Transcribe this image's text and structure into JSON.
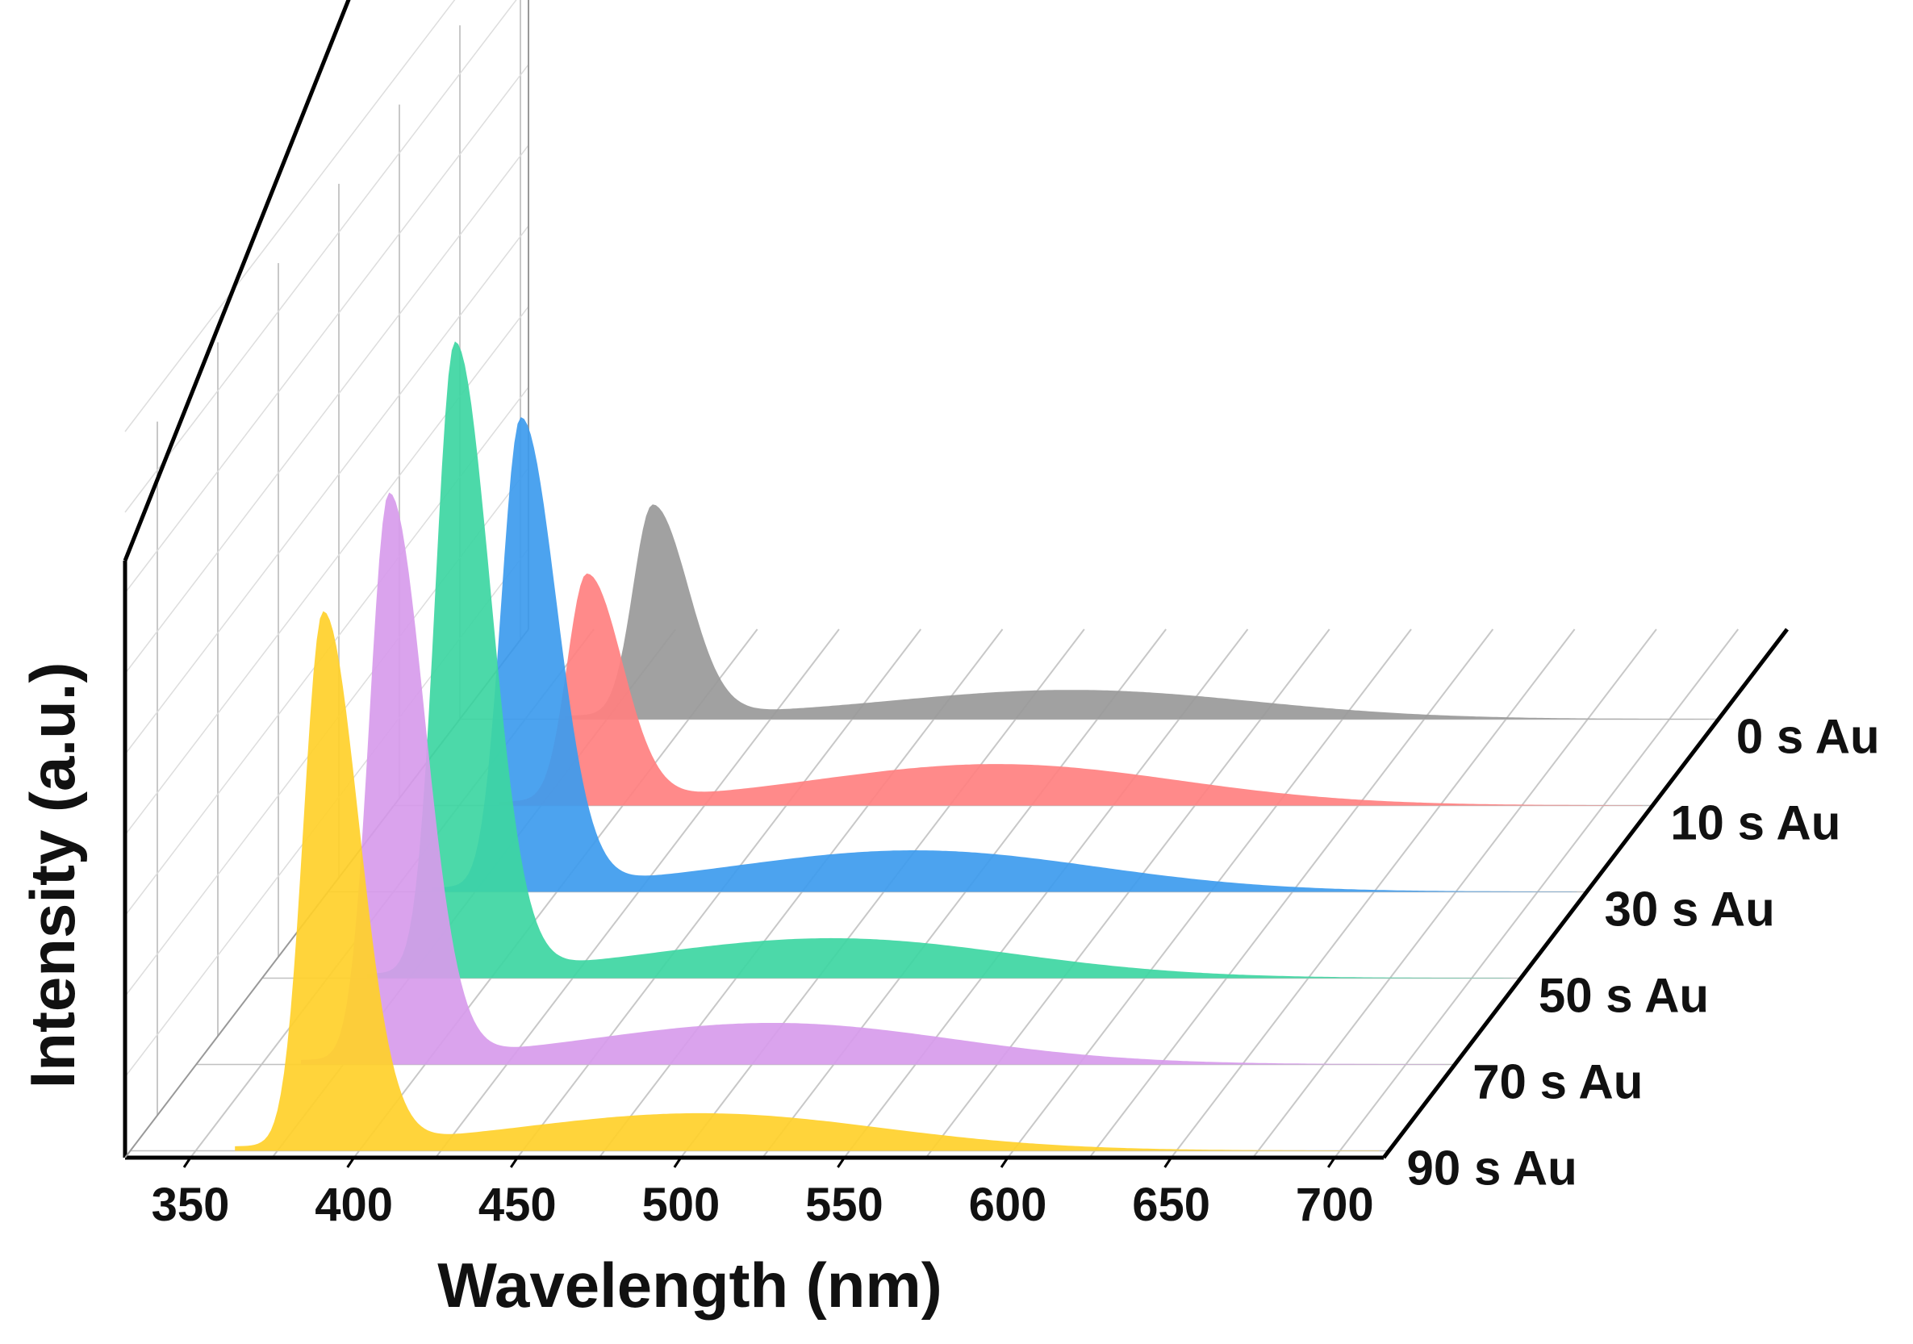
{
  "chart_data": {
    "type": "area",
    "subtype": "3d-waterfall",
    "xlabel": "Wavelength (nm)",
    "ylabel": "Intensity (a.u.)",
    "xlim": [
      330,
      715
    ],
    "ylim": [
      0,
      1.0
    ],
    "x_ticks": [
      350,
      400,
      450,
      500,
      550,
      600,
      650,
      700
    ],
    "x_tick_labels": [
      "350",
      "400",
      "450",
      "500",
      "550",
      "600",
      "650",
      "700"
    ],
    "series": [
      {
        "name": "90 s Au",
        "color": "#FFD02A",
        "peak1": {
          "center": 389,
          "height": 0.66,
          "width": 8
        },
        "peak2": {
          "center": 505,
          "height": 0.045,
          "width": 55
        }
      },
      {
        "name": "70 s Au",
        "color": "#D79BEB",
        "peak1": {
          "center": 389,
          "height": 0.7,
          "width": 8
        },
        "peak2": {
          "center": 507,
          "height": 0.05,
          "width": 55
        }
      },
      {
        "name": "50 s Au",
        "color": "#3DD6A2",
        "peak1": {
          "center": 389,
          "height": 0.78,
          "width": 8
        },
        "peak2": {
          "center": 505,
          "height": 0.048,
          "width": 55
        }
      },
      {
        "name": "30 s Au",
        "color": "#3D9BEE",
        "peak1": {
          "center": 389,
          "height": 0.58,
          "width": 8
        },
        "peak2": {
          "center": 510,
          "height": 0.05,
          "width": 55
        }
      },
      {
        "name": "10 s Au",
        "color": "#FF8080",
        "peak1": {
          "center": 389,
          "height": 0.28,
          "width": 8
        },
        "peak2": {
          "center": 515,
          "height": 0.05,
          "width": 55
        }
      },
      {
        "name": "0 s Au",
        "color": "#999999",
        "peak1": {
          "center": 389,
          "height": 0.26,
          "width": 8
        },
        "peak2": {
          "center": 518,
          "height": 0.035,
          "width": 55
        }
      }
    ]
  }
}
